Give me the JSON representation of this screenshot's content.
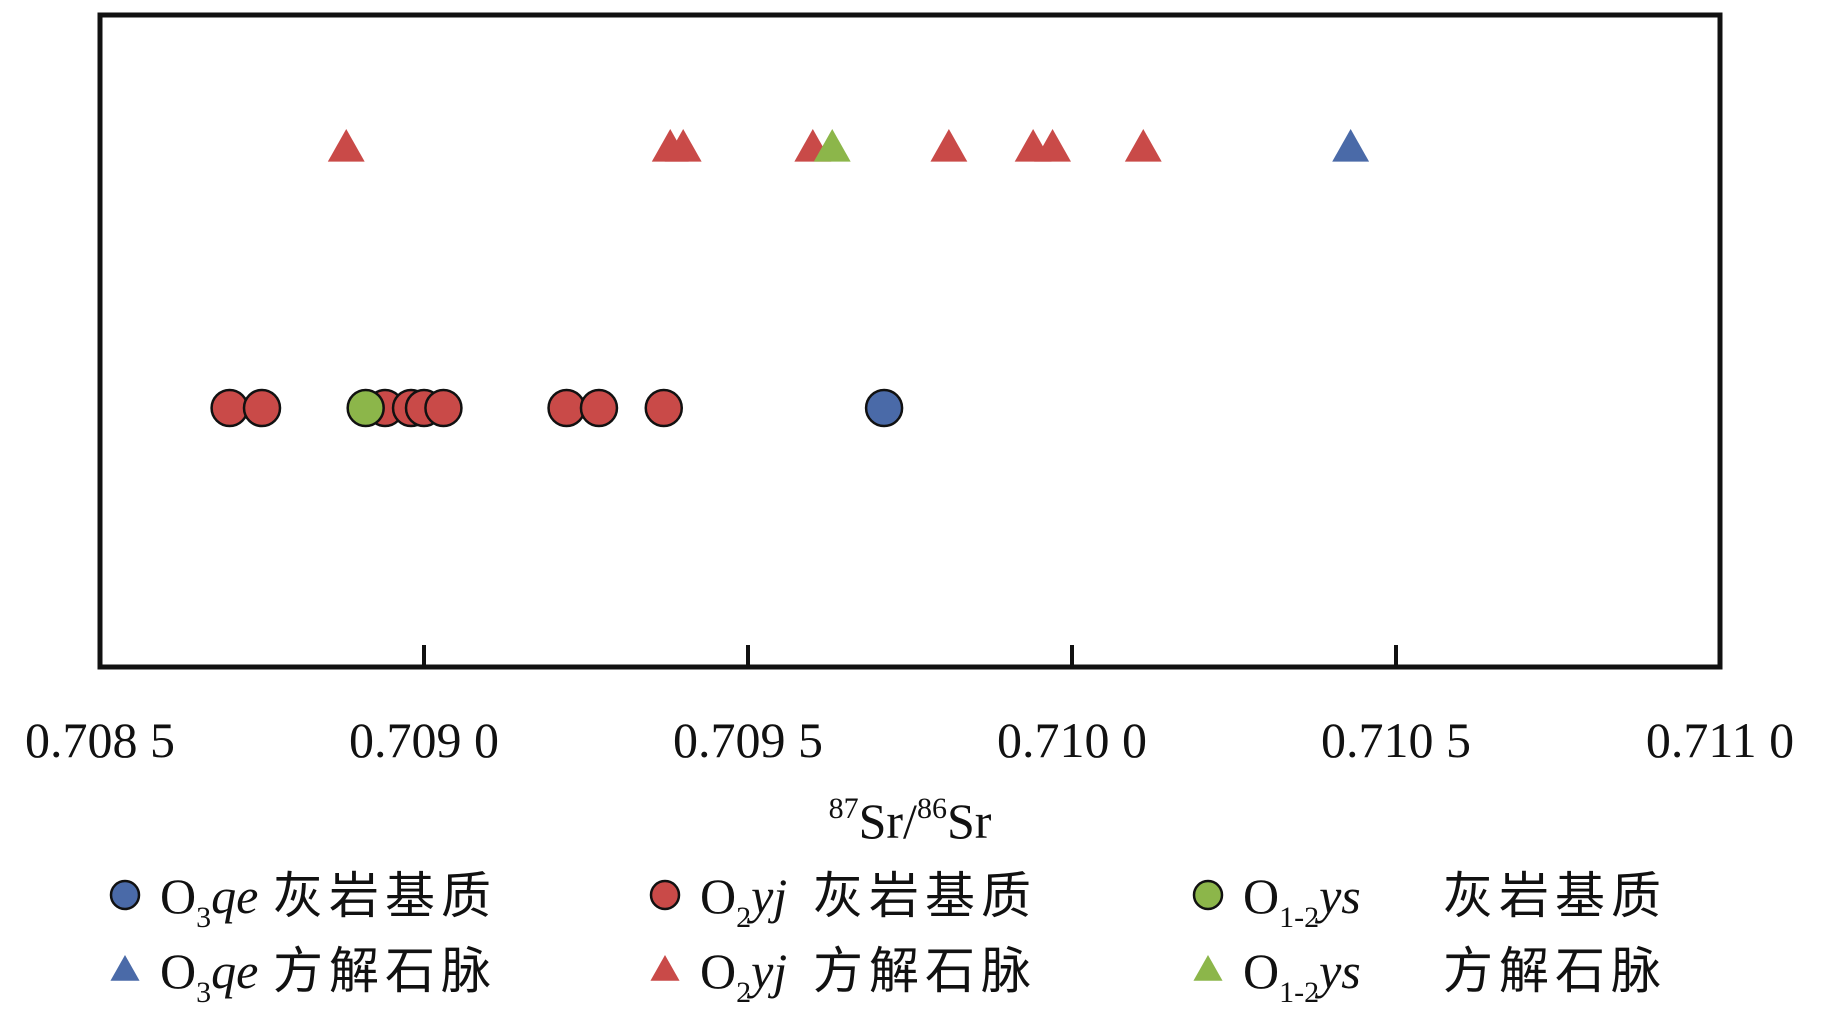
{
  "chart_data": {
    "type": "scatter",
    "xlabel": {
      "pre_sup": "87",
      "base": "Sr/",
      "mid_sup": "86",
      "base2": "Sr"
    },
    "xlim": [
      0.7085,
      0.711
    ],
    "xticks": [
      0.7085,
      0.709,
      0.7095,
      0.71,
      0.7105,
      0.711
    ],
    "xtick_labels": [
      "0.708 5",
      "0.709 0",
      "0.709 5",
      "0.710 0",
      "0.710 5",
      "0.711 0"
    ],
    "grid": false,
    "legend_position": "bottom",
    "rows": [
      "方解石脉",
      "灰岩基质"
    ],
    "series": [
      {
        "key": "o3qe_matrix",
        "marker": "circle",
        "color": "#4a6aa8",
        "row": "灰岩基质",
        "legend": {
          "O": "O",
          "sub": "3",
          "formation": "qe",
          "rock": "灰岩基质"
        },
        "values": [
          0.70971
        ]
      },
      {
        "key": "o2yj_matrix",
        "marker": "circle",
        "color": "#c94a48",
        "row": "灰岩基质",
        "legend": {
          "O": "O",
          "sub": "2",
          "formation": "yj",
          "rock": "灰岩基质"
        },
        "values": [
          0.7087,
          0.70875,
          0.70894,
          0.70898,
          0.709,
          0.70903,
          0.70922,
          0.70927,
          0.70937
        ]
      },
      {
        "key": "o12ys_matrix",
        "marker": "circle",
        "color": "#8cb64a",
        "row": "灰岩基质",
        "legend": {
          "O": "O",
          "sub": "1-2",
          "formation": "ys",
          "rock": "灰岩基质"
        },
        "values": [
          0.70891
        ]
      },
      {
        "key": "o3qe_vein",
        "marker": "triangle",
        "color": "#4a6aa8",
        "row": "方解石脉",
        "legend": {
          "O": "O",
          "sub": "3",
          "formation": "qe",
          "rock": "方解石脉"
        },
        "values": [
          0.71043
        ]
      },
      {
        "key": "o2yj_vein",
        "marker": "triangle",
        "color": "#c94a48",
        "row": "方解石脉",
        "legend": {
          "O": "O",
          "sub": "2",
          "formation": "yj",
          "rock": "方解石脉"
        },
        "values": [
          0.70888,
          0.70938,
          0.7094,
          0.7096,
          0.70981,
          0.70994,
          0.70997,
          0.71011
        ]
      },
      {
        "key": "o12ys_vein",
        "marker": "triangle",
        "color": "#8cb64a",
        "row": "方解石脉",
        "legend": {
          "O": "O",
          "sub": "1-2",
          "formation": "ys",
          "rock": "方解石脉"
        },
        "values": [
          0.70963
        ]
      }
    ]
  }
}
